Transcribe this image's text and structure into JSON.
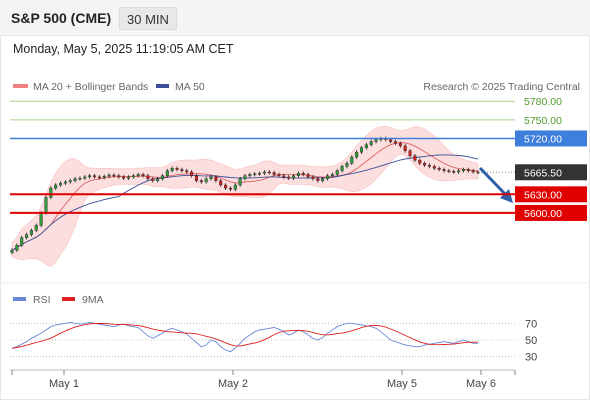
{
  "header": {
    "instrument": "S&P 500 (CME)",
    "timeframe": "30 MIN",
    "datetime": "Monday, May 5, 2025 11:19:05 AM CET"
  },
  "legend": {
    "ma20_bb": "MA 20 + Bollinger Bands",
    "ma50": "MA 50",
    "credit": "Research © 2025 Trading Central",
    "rsi": "RSI",
    "rsi_ma": "9MA"
  },
  "levels": [
    {
      "label": "5780.00",
      "value": 5780,
      "kind": "target"
    },
    {
      "label": "5750.00",
      "value": 5750,
      "kind": "target"
    },
    {
      "label": "5720.00",
      "value": 5720,
      "kind": "pivot"
    },
    {
      "label": "5665.50",
      "value": 5665.5,
      "kind": "last"
    },
    {
      "label": "5630.00",
      "value": 5630,
      "kind": "support"
    },
    {
      "label": "5600.00",
      "value": 5600,
      "kind": "support"
    }
  ],
  "rsi_axis": [
    "70",
    "50",
    "30"
  ],
  "x_labels": [
    "May 1",
    "May 2",
    "May 5",
    "May 6"
  ],
  "colors": {
    "bollinger": "#f5a0a0",
    "ma50": "#3a4f9a",
    "target": "#7ac043",
    "pivot": "#3f7fdc",
    "support": "#e00000",
    "last": "#333333",
    "rsi": "#6a88d8",
    "rsi_ma": "#e02020",
    "arrow": "#2d5ea8"
  },
  "chart_data": {
    "type": "candlestick",
    "price_series": [
      5540,
      5548,
      5560,
      5565,
      5572,
      5580,
      5600,
      5625,
      5640,
      5645,
      5648,
      5650,
      5652,
      5655,
      5656,
      5658,
      5660,
      5658,
      5657,
      5659,
      5661,
      5660,
      5658,
      5656,
      5658,
      5660,
      5662,
      5660,
      5655,
      5652,
      5655,
      5660,
      5668,
      5672,
      5670,
      5668,
      5666,
      5660,
      5652,
      5650,
      5655,
      5658,
      5652,
      5645,
      5640,
      5638,
      5645,
      5655,
      5660,
      5662,
      5663,
      5664,
      5666,
      5665,
      5662,
      5660,
      5658,
      5656,
      5660,
      5664,
      5662,
      5658,
      5655,
      5652,
      5655,
      5660,
      5662,
      5668,
      5675,
      5680,
      5690,
      5698,
      5705,
      5710,
      5715,
      5718,
      5720,
      5718,
      5715,
      5712,
      5708,
      5700,
      5692,
      5685,
      5680,
      5677,
      5675,
      5672,
      5670,
      5668,
      5667,
      5666,
      5668,
      5670,
      5668,
      5666,
      5665.5
    ],
    "rsi_series": [
      40,
      42,
      45,
      48,
      52,
      55,
      58,
      62,
      66,
      68,
      69,
      70,
      71,
      70,
      69,
      70,
      71,
      70,
      69,
      68,
      67,
      66,
      68,
      69,
      67,
      66,
      65,
      60,
      55,
      52,
      55,
      58,
      62,
      64,
      62,
      60,
      57,
      52,
      47,
      42,
      44,
      50,
      48,
      42,
      38,
      36,
      40,
      46,
      52,
      56,
      60,
      62,
      63,
      64,
      65,
      63,
      60,
      56,
      58,
      62,
      60,
      56,
      52,
      50,
      53,
      58,
      62,
      66,
      68,
      70,
      70,
      69,
      68,
      67,
      66,
      64,
      60,
      55,
      50,
      48,
      46,
      44,
      43,
      42,
      42,
      44,
      45,
      46,
      47,
      48,
      47,
      46,
      48,
      50,
      48,
      46,
      46
    ],
    "x_labels": [
      "May 1",
      "May 2",
      "May 5",
      "May 6"
    ],
    "price_ylim": [
      5500,
      5790
    ],
    "rsi_ylim": [
      20,
      80
    ]
  }
}
